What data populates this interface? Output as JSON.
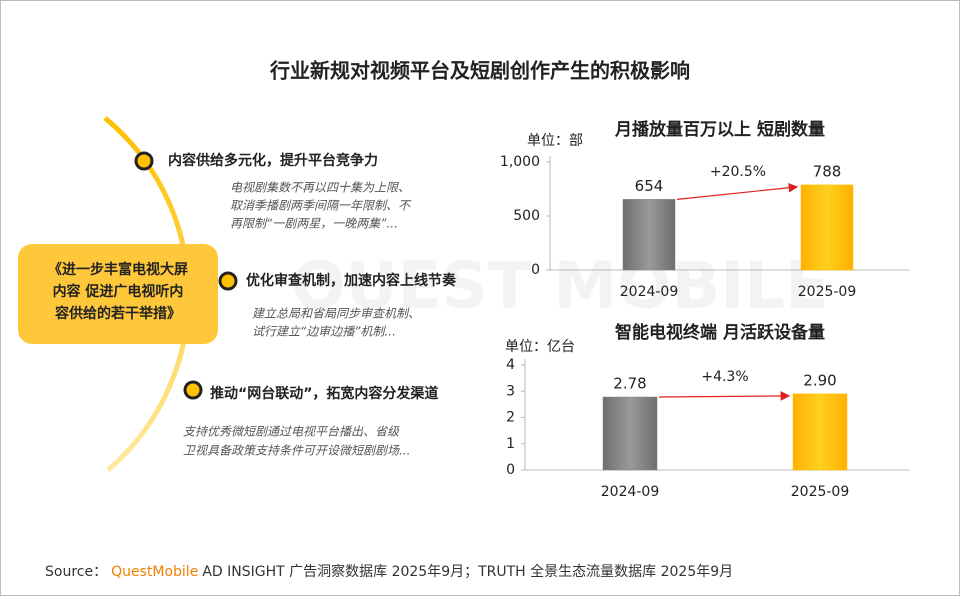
{
  "title": "行业新规对视频平台及短剧创作产生的积极影响",
  "watermark": "QUEST MOBILE",
  "policy": {
    "label_lines": [
      "《进一步丰富电视大屏",
      "内容 促进广电视听内",
      "容供给的若干举措》"
    ],
    "points": [
      {
        "heading": "内容供给多元化，提升平台竞争力",
        "lines": [
          "电视剧集数不再以四十集为上限、",
          "取消季播剧两季间隔一年限制、不",
          "再限制“一剧两星，一晚两集”..."
        ]
      },
      {
        "heading": "优化审查机制，加速内容上线节奏",
        "lines": [
          "建立总局和省局同步审查机制、",
          "试行建立“边审边播”机制..."
        ]
      },
      {
        "heading": "推动“网台联动”，拓宽内容分发渠道",
        "lines": [
          "支持优秀微短剧通过电视平台播出、省级",
          "卫视具备政策支持条件可开设微短剧剧场..."
        ]
      }
    ]
  },
  "chart_data": [
    {
      "type": "bar",
      "title": "月播放量百万以上 短剧数量",
      "unit_label": "单位：部",
      "categories": [
        "2024-09",
        "2025-09"
      ],
      "values": [
        654,
        788
      ],
      "colors": [
        "#7f7f7f",
        "#ffc000"
      ],
      "ylim": [
        0,
        1000
      ],
      "yticks": [
        0,
        500,
        {
          "value": 1000,
          "label": "1,000"
        }
      ],
      "annotation": "+20.5%"
    },
    {
      "type": "bar",
      "title": "智能电视终端 月活跃设备量",
      "unit_label": "单位：亿台",
      "categories": [
        "2024-09",
        "2025-09"
      ],
      "values": [
        2.78,
        2.9
      ],
      "value_labels": [
        "2.78",
        "2.90"
      ],
      "colors": [
        "#7f7f7f",
        "#ffc000"
      ],
      "ylim": [
        0,
        4
      ],
      "yticks": [
        0,
        1,
        2,
        3,
        4
      ],
      "annotation": "+4.3%"
    }
  ],
  "source": {
    "prefix": "Source：",
    "brand": "QuestMobile",
    "text": "AD INSIGHT 广告洞察数据库 2025年9月；TRUTH 全景生态流量数据库 2025年9月"
  }
}
